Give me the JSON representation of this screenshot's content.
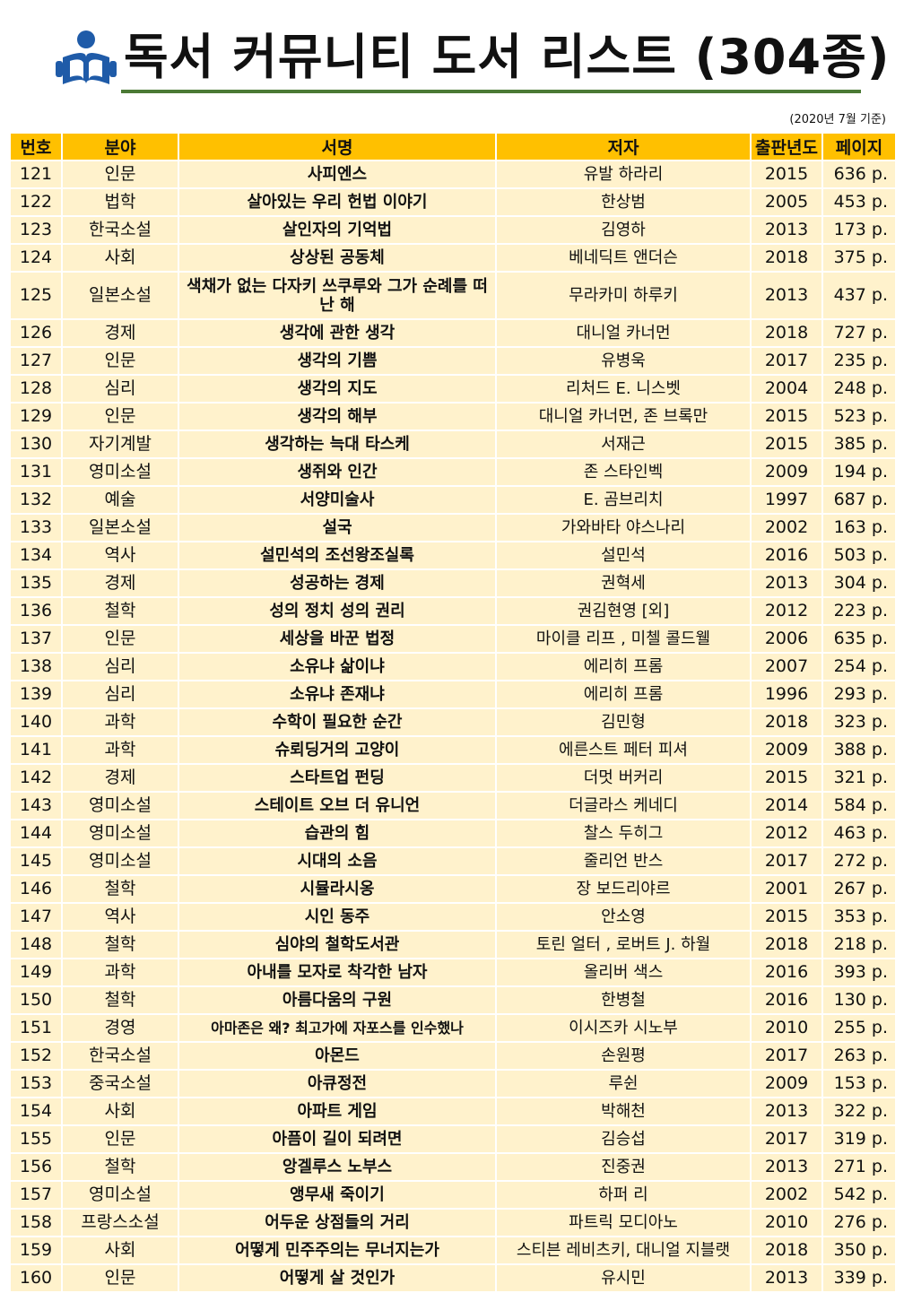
{
  "header": {
    "title": "독서 커뮤니티 도서 리스트 (304종)",
    "date_note": "(2020년 7월 기준)",
    "logo_icon": "reader-book-icon",
    "accent": "#4b7a35",
    "logo_color": "#1f5ba8"
  },
  "table": {
    "header_color": "#ffc000",
    "row_color": "#fff2cc",
    "columns": [
      "번호",
      "분야",
      "서명",
      "저자",
      "출판년도",
      "페이지"
    ],
    "rows": [
      {
        "no": "121",
        "genre": "인문",
        "title": "사피엔스",
        "author": "유발 하라리",
        "year": "2015",
        "pages": "636 p."
      },
      {
        "no": "122",
        "genre": "법학",
        "title": "살아있는 우리 헌법 이야기",
        "author": "한상범",
        "year": "2005",
        "pages": "453 p."
      },
      {
        "no": "123",
        "genre": "한국소설",
        "title": "살인자의 기억법",
        "author": "김영하",
        "year": "2013",
        "pages": "173 p."
      },
      {
        "no": "124",
        "genre": "사회",
        "title": "상상된 공동체",
        "author": "베네딕트 앤더슨",
        "year": "2018",
        "pages": "375 p."
      },
      {
        "no": "125",
        "genre": "일본소설",
        "title": "색채가 없는 다자키 쓰쿠루와 그가 순례를 떠난 해",
        "author": "무라카미 하루키",
        "year": "2013",
        "pages": "437 p."
      },
      {
        "no": "126",
        "genre": "경제",
        "title": "생각에 관한 생각",
        "author": "대니얼 카너먼",
        "year": "2018",
        "pages": "727 p."
      },
      {
        "no": "127",
        "genre": "인문",
        "title": "생각의 기쁨",
        "author": "유병욱",
        "year": "2017",
        "pages": "235 p."
      },
      {
        "no": "128",
        "genre": "심리",
        "title": "생각의 지도",
        "author": "리처드 E. 니스벳",
        "year": "2004",
        "pages": "248 p."
      },
      {
        "no": "129",
        "genre": "인문",
        "title": "생각의 해부",
        "author": "대니얼 카너먼, 존 브록만",
        "year": "2015",
        "pages": "523 p."
      },
      {
        "no": "130",
        "genre": "자기계발",
        "title": "생각하는 늑대 타스케",
        "author": "서재근",
        "year": "2015",
        "pages": "385 p."
      },
      {
        "no": "131",
        "genre": "영미소설",
        "title": "생쥐와 인간",
        "author": "존 스타인벡",
        "year": "2009",
        "pages": "194 p."
      },
      {
        "no": "132",
        "genre": "예술",
        "title": "서양미술사",
        "author": "E. 곰브리치",
        "year": "1997",
        "pages": "687 p."
      },
      {
        "no": "133",
        "genre": "일본소설",
        "title": "설국",
        "author": "가와바타 야스나리",
        "year": "2002",
        "pages": "163 p."
      },
      {
        "no": "134",
        "genre": "역사",
        "title": "설민석의 조선왕조실록",
        "author": "설민석",
        "year": "2016",
        "pages": "503 p."
      },
      {
        "no": "135",
        "genre": "경제",
        "title": "성공하는 경제",
        "author": "권혁세",
        "year": "2013",
        "pages": "304 p."
      },
      {
        "no": "136",
        "genre": "철학",
        "title": "성의 정치 성의 권리",
        "author": "권김현영 [외]",
        "year": "2012",
        "pages": "223 p."
      },
      {
        "no": "137",
        "genre": "인문",
        "title": "세상을 바꾼 법정",
        "author": "마이클 리프 , 미첼 콜드웰",
        "year": "2006",
        "pages": "635 p."
      },
      {
        "no": "138",
        "genre": "심리",
        "title": "소유냐 삶이냐",
        "author": "에리히 프롬",
        "year": "2007",
        "pages": "254 p."
      },
      {
        "no": "139",
        "genre": "심리",
        "title": "소유냐 존재냐",
        "author": "에리히 프롬",
        "year": "1996",
        "pages": "293 p."
      },
      {
        "no": "140",
        "genre": "과학",
        "title": "수학이 필요한 순간",
        "author": "김민형",
        "year": "2018",
        "pages": "323 p."
      },
      {
        "no": "141",
        "genre": "과학",
        "title": "슈뢰딩거의 고양이",
        "author": "에른스트 페터 피셔",
        "year": "2009",
        "pages": "388 p."
      },
      {
        "no": "142",
        "genre": "경제",
        "title": "스타트업 펀딩",
        "author": "더멋 버커리",
        "year": "2015",
        "pages": "321 p."
      },
      {
        "no": "143",
        "genre": "영미소설",
        "title": "스테이트 오브 더 유니언",
        "author": "더글라스 케네디",
        "year": "2014",
        "pages": "584 p."
      },
      {
        "no": "144",
        "genre": "영미소설",
        "title": "습관의 힘",
        "author": "찰스 두히그",
        "year": "2012",
        "pages": "463 p."
      },
      {
        "no": "145",
        "genre": "영미소설",
        "title": "시대의 소음",
        "author": "줄리언 반스",
        "year": "2017",
        "pages": "272 p."
      },
      {
        "no": "146",
        "genre": "철학",
        "title": "시뮬라시옹",
        "author": "장 보드리야르",
        "year": "2001",
        "pages": "267 p."
      },
      {
        "no": "147",
        "genre": "역사",
        "title": "시인 동주",
        "author": "안소영",
        "year": "2015",
        "pages": "353 p."
      },
      {
        "no": "148",
        "genre": "철학",
        "title": "심야의 철학도서관",
        "author": "토린 얼터 , 로버트 J. 하월",
        "year": "2018",
        "pages": "218 p."
      },
      {
        "no": "149",
        "genre": "과학",
        "title": "아내를 모자로 착각한 남자",
        "author": "올리버 색스",
        "year": "2016",
        "pages": "393 p."
      },
      {
        "no": "150",
        "genre": "철학",
        "title": "아름다움의 구원",
        "author": "한병철",
        "year": "2016",
        "pages": "130 p."
      },
      {
        "no": "151",
        "genre": "경영",
        "title": "아마존은 왜? 최고가에 자포스를 인수했나",
        "author": "이시즈카 시노부",
        "year": "2010",
        "pages": "255 p."
      },
      {
        "no": "152",
        "genre": "한국소설",
        "title": "아몬드",
        "author": "손원평",
        "year": "2017",
        "pages": "263 p."
      },
      {
        "no": "153",
        "genre": "중국소설",
        "title": "아큐정전",
        "author": "루쉰",
        "year": "2009",
        "pages": "153 p."
      },
      {
        "no": "154",
        "genre": "사회",
        "title": "아파트 게임",
        "author": "박해천",
        "year": "2013",
        "pages": "322 p."
      },
      {
        "no": "155",
        "genre": "인문",
        "title": "아픔이 길이 되려면",
        "author": "김승섭",
        "year": "2017",
        "pages": "319 p."
      },
      {
        "no": "156",
        "genre": "철학",
        "title": "앙겔루스 노부스",
        "author": "진중권",
        "year": "2013",
        "pages": "271 p."
      },
      {
        "no": "157",
        "genre": "영미소설",
        "title": "앵무새 죽이기",
        "author": "하퍼 리",
        "year": "2002",
        "pages": "542 p."
      },
      {
        "no": "158",
        "genre": "프랑스소설",
        "title": "어두운 상점들의 거리",
        "author": "파트릭 모디아노",
        "year": "2010",
        "pages": "276 p."
      },
      {
        "no": "159",
        "genre": "사회",
        "title": "어떻게 민주주의는 무너지는가",
        "author": "스티븐 레비츠키, 대니얼 지블랫",
        "year": "2018",
        "pages": "350 p."
      },
      {
        "no": "160",
        "genre": "인문",
        "title": "어떻게 살 것인가",
        "author": "유시민",
        "year": "2013",
        "pages": "339 p."
      }
    ]
  }
}
